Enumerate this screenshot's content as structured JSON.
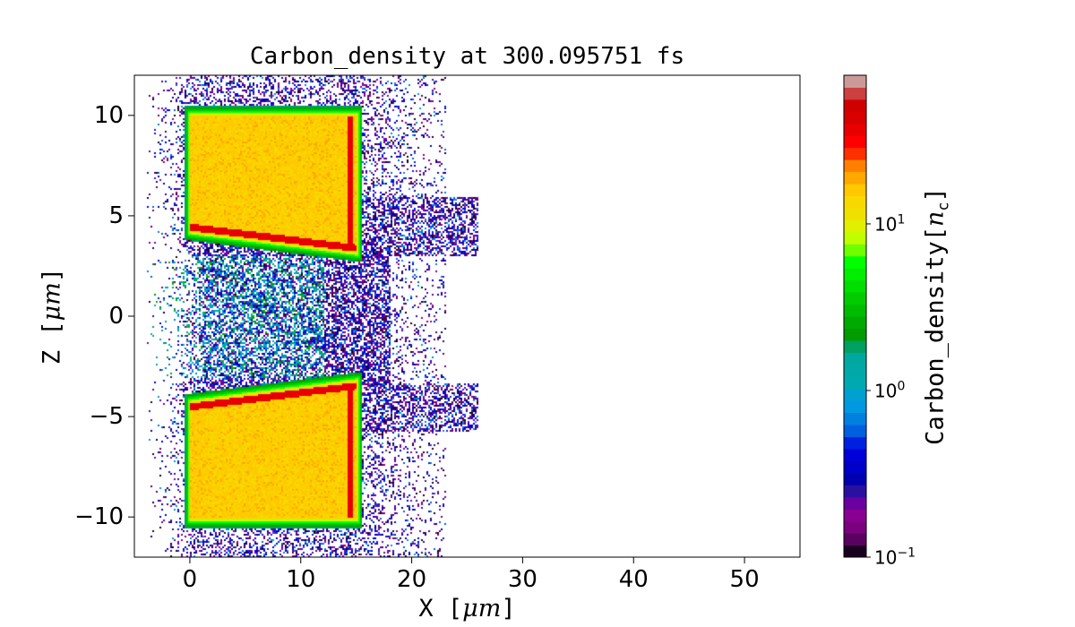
{
  "chart_data": {
    "type": "heatmap",
    "title": "Carbon_density at 300.095751 fs",
    "xlabel": "X [μm]",
    "ylabel": "Z [μm]",
    "xlabel_parts": {
      "text": "X ",
      "unit_open": "[",
      "unit": "μm",
      "unit_close": "]"
    },
    "ylabel_parts": {
      "text": "Z ",
      "unit_open": "[",
      "unit": "μm",
      "unit_close": "]"
    },
    "xlim": [
      -5,
      55
    ],
    "ylim": [
      -12,
      12
    ],
    "xticks": [
      0,
      10,
      20,
      30,
      40,
      50
    ],
    "yticks": [
      -10,
      -5,
      0,
      5,
      10
    ],
    "xtick_labels": [
      "0",
      "10",
      "20",
      "30",
      "40",
      "50"
    ],
    "ytick_labels": [
      "−10",
      "−5",
      "0",
      "5",
      "10"
    ],
    "colorbar": {
      "label_text": "Carbon_density[",
      "label_var": "n",
      "label_sub": "c",
      "label_close": "]",
      "scale": "log",
      "range": [
        0.1,
        78
      ],
      "ticks": [
        {
          "base": "10",
          "exp": "−1",
          "value": 0.1
        },
        {
          "base": "10",
          "exp": "0",
          "value": 1
        },
        {
          "base": "10",
          "exp": "1",
          "value": 10
        }
      ],
      "colors": [
        "#1a0020",
        "#5a0060",
        "#7a0080",
        "#880090",
        "#6a00a0",
        "#2a10a0",
        "#0000b0",
        "#0000c8",
        "#0000d8",
        "#0020e0",
        "#0060e0",
        "#0080e0",
        "#0098e0",
        "#00a0d0",
        "#00a8b0",
        "#00a8a8",
        "#00a8a0",
        "#00a060",
        "#009c00",
        "#00aa00",
        "#00bb00",
        "#00cc00",
        "#00dd00",
        "#00ee00",
        "#00ff00",
        "#70ff00",
        "#c0ff00",
        "#e0f000",
        "#f0e000",
        "#f8d800",
        "#ffc800",
        "#ffa800",
        "#ff8000",
        "#ff3000",
        "#ff0000",
        "#e80000",
        "#d80000",
        "#d00000",
        "#cc4040",
        "#cc9999"
      ]
    },
    "regions": [
      {
        "name": "upper slab",
        "x": [
          0,
          15
        ],
        "z": [
          4,
          10
        ],
        "density": 15
      },
      {
        "name": "lower slab",
        "x": [
          0,
          15
        ],
        "z": [
          -10,
          -4
        ],
        "density": 15
      }
    ],
    "grid": false
  }
}
